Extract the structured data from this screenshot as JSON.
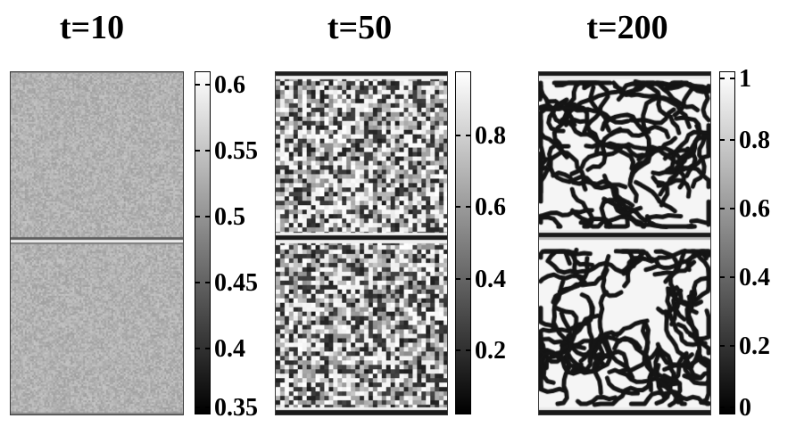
{
  "panels": [
    {
      "title": "t=10",
      "colorbar": {
        "min": 0.35,
        "max": 0.61,
        "ticks": [
          "0.6",
          "0.55",
          "0.5",
          "0.45",
          "0.4",
          "0.35"
        ],
        "tick_values": [
          0.6,
          0.55,
          0.5,
          0.45,
          0.4,
          0.35
        ]
      }
    },
    {
      "title": "t=50",
      "colorbar": {
        "min": 0.02,
        "max": 0.98,
        "ticks": [
          "0.8",
          "0.6",
          "0.4",
          "0.2"
        ],
        "tick_values": [
          0.8,
          0.6,
          0.4,
          0.2
        ]
      }
    },
    {
      "title": "t=200",
      "colorbar": {
        "min": 0,
        "max": 1,
        "ticks": [
          "1",
          "0.8",
          "0.6",
          "0.4",
          "0.2",
          "0"
        ],
        "tick_values": [
          1,
          0.8,
          0.6,
          0.4,
          0.2,
          0
        ]
      }
    }
  ]
}
